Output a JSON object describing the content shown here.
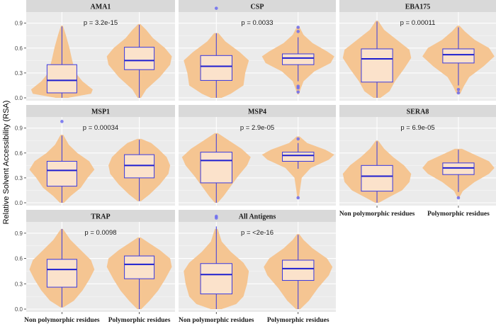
{
  "ylabel": "Relative Solvent Accessibility (RSA)",
  "colors": {
    "violin_fill": "#f5c592",
    "box_fill": "#fbe2cb",
    "box_stroke": "#3a3ae0",
    "median": "#1f1fd0",
    "outlier": "#6b6bf0",
    "panel_bg": "#ebebeb",
    "strip_bg": "#d9d9d9",
    "grid": "#ffffff"
  },
  "chart_data": {
    "type": "violin",
    "ylim": [
      0,
      1.0
    ],
    "y_ticks": [
      0.0,
      0.3,
      0.6,
      0.9
    ],
    "y_tick_labels": [
      "0.0",
      "0.3",
      "0.6",
      "0.9"
    ],
    "categories": [
      "Non polymorphic residues",
      "Polymorphic residues"
    ],
    "panels": [
      {
        "title": "AMA1",
        "pvalue": "p = 3.2e-15",
        "groups": [
          {
            "whisker_low": 0.0,
            "q1": 0.06,
            "median": 0.21,
            "q3": 0.4,
            "whisker_high": 0.86,
            "density": [
              [
                0.0,
                0.18
              ],
              [
                0.05,
                0.85
              ],
              [
                0.1,
                0.9
              ],
              [
                0.2,
                0.6
              ],
              [
                0.3,
                0.4
              ],
              [
                0.45,
                0.3
              ],
              [
                0.6,
                0.22
              ],
              [
                0.75,
                0.12
              ],
              [
                0.87,
                0.03
              ]
            ],
            "outliers": []
          },
          {
            "whisker_low": 0.0,
            "q1": 0.34,
            "median": 0.45,
            "q3": 0.61,
            "whisker_high": 0.88,
            "density": [
              [
                0.0,
                0.05
              ],
              [
                0.1,
                0.2
              ],
              [
                0.25,
                0.6
              ],
              [
                0.4,
                0.9
              ],
              [
                0.5,
                0.95
              ],
              [
                0.6,
                0.75
              ],
              [
                0.72,
                0.4
              ],
              [
                0.82,
                0.2
              ],
              [
                0.89,
                0.03
              ]
            ],
            "outliers": []
          }
        ]
      },
      {
        "title": "CSP",
        "pvalue": "p = 0.0033",
        "groups": [
          {
            "whisker_low": 0.0,
            "q1": 0.21,
            "median": 0.38,
            "q3": 0.51,
            "whisker_high": 0.78,
            "density": [
              [
                0.0,
                0.15
              ],
              [
                0.05,
                0.4
              ],
              [
                0.15,
                0.75
              ],
              [
                0.3,
                0.8
              ],
              [
                0.45,
                0.9
              ],
              [
                0.55,
                0.65
              ],
              [
                0.68,
                0.25
              ],
              [
                0.78,
                0.06
              ]
            ],
            "outliers": [
              1.08
            ]
          },
          {
            "whisker_low": 0.2,
            "q1": 0.4,
            "median": 0.48,
            "q3": 0.53,
            "whisker_high": 0.73,
            "density": [
              [
                0.04,
                0.02
              ],
              [
                0.12,
                0.08
              ],
              [
                0.2,
                0.15
              ],
              [
                0.32,
                0.45
              ],
              [
                0.42,
                0.9
              ],
              [
                0.5,
                1.0
              ],
              [
                0.56,
                0.8
              ],
              [
                0.66,
                0.4
              ],
              [
                0.76,
                0.15
              ],
              [
                0.86,
                0.03
              ]
            ],
            "outliers": [
              0.07,
              0.12,
              0.14,
              0.8,
              0.85
            ]
          }
        ]
      },
      {
        "title": "EBA175",
        "pvalue": "p = 0.00011",
        "groups": [
          {
            "whisker_low": 0.0,
            "q1": 0.19,
            "median": 0.47,
            "q3": 0.59,
            "whisker_high": 0.92,
            "density": [
              [
                0.0,
                0.1
              ],
              [
                0.08,
                0.35
              ],
              [
                0.2,
                0.5
              ],
              [
                0.35,
                0.75
              ],
              [
                0.48,
                0.95
              ],
              [
                0.58,
                0.9
              ],
              [
                0.7,
                0.55
              ],
              [
                0.82,
                0.2
              ],
              [
                0.93,
                0.03
              ]
            ],
            "outliers": []
          },
          {
            "whisker_low": 0.15,
            "q1": 0.42,
            "median": 0.52,
            "q3": 0.59,
            "whisker_high": 0.85,
            "density": [
              [
                0.05,
                0.05
              ],
              [
                0.14,
                0.15
              ],
              [
                0.25,
                0.3
              ],
              [
                0.38,
                0.7
              ],
              [
                0.5,
                1.0
              ],
              [
                0.6,
                0.85
              ],
              [
                0.7,
                0.45
              ],
              [
                0.8,
                0.18
              ],
              [
                0.87,
                0.03
              ]
            ],
            "outliers": [
              0.06,
              0.1
            ]
          }
        ]
      },
      {
        "title": "MSP1",
        "pvalue": "p = 0.00034",
        "groups": [
          {
            "whisker_low": 0.0,
            "q1": 0.2,
            "median": 0.39,
            "q3": 0.5,
            "whisker_high": 0.81,
            "density": [
              [
                0.0,
                0.06
              ],
              [
                0.08,
                0.25
              ],
              [
                0.18,
                0.55
              ],
              [
                0.3,
                0.75
              ],
              [
                0.4,
                0.95
              ],
              [
                0.5,
                0.8
              ],
              [
                0.6,
                0.45
              ],
              [
                0.7,
                0.2
              ],
              [
                0.82,
                0.04
              ]
            ],
            "outliers": [
              0.98
            ]
          },
          {
            "whisker_low": 0.02,
            "q1": 0.3,
            "median": 0.45,
            "q3": 0.58,
            "whisker_high": 0.76,
            "density": [
              [
                0.02,
                0.05
              ],
              [
                0.1,
                0.3
              ],
              [
                0.22,
                0.6
              ],
              [
                0.35,
                0.85
              ],
              [
                0.45,
                0.9
              ],
              [
                0.55,
                0.8
              ],
              [
                0.65,
                0.55
              ],
              [
                0.72,
                0.35
              ],
              [
                0.77,
                0.06
              ]
            ],
            "outliers": []
          }
        ]
      },
      {
        "title": "MSP4",
        "pvalue": "p = 2.9e-05",
        "groups": [
          {
            "whisker_low": 0.0,
            "q1": 0.24,
            "median": 0.51,
            "q3": 0.61,
            "whisker_high": 0.83,
            "density": [
              [
                0.0,
                0.04
              ],
              [
                0.08,
                0.2
              ],
              [
                0.2,
                0.4
              ],
              [
                0.32,
                0.6
              ],
              [
                0.45,
                0.85
              ],
              [
                0.55,
                0.95
              ],
              [
                0.65,
                0.7
              ],
              [
                0.75,
                0.35
              ],
              [
                0.84,
                0.04
              ]
            ],
            "outliers": []
          },
          {
            "whisker_low": 0.41,
            "q1": 0.5,
            "median": 0.57,
            "q3": 0.61,
            "whisker_high": 0.72,
            "density": [
              [
                0.05,
                0.02
              ],
              [
                0.15,
                0.05
              ],
              [
                0.3,
                0.1
              ],
              [
                0.42,
                0.35
              ],
              [
                0.52,
                0.85
              ],
              [
                0.58,
                1.0
              ],
              [
                0.64,
                0.75
              ],
              [
                0.72,
                0.25
              ],
              [
                0.8,
                0.04
              ]
            ],
            "outliers": [
              0.06,
              0.77
            ]
          }
        ]
      },
      {
        "title": "SERA8",
        "pvalue": "p = 6.9e-05",
        "groups": [
          {
            "whisker_low": 0.0,
            "q1": 0.14,
            "median": 0.32,
            "q3": 0.45,
            "whisker_high": 0.74,
            "density": [
              [
                0.0,
                0.05
              ],
              [
                0.07,
                0.35
              ],
              [
                0.15,
                0.7
              ],
              [
                0.25,
                0.9
              ],
              [
                0.35,
                0.95
              ],
              [
                0.45,
                0.75
              ],
              [
                0.55,
                0.45
              ],
              [
                0.65,
                0.2
              ],
              [
                0.75,
                0.03
              ]
            ],
            "outliers": []
          },
          {
            "whisker_low": 0.13,
            "q1": 0.34,
            "median": 0.42,
            "q3": 0.48,
            "whisker_high": 0.64,
            "density": [
              [
                0.06,
                0.02
              ],
              [
                0.14,
                0.12
              ],
              [
                0.25,
                0.45
              ],
              [
                0.35,
                0.85
              ],
              [
                0.42,
                1.0
              ],
              [
                0.5,
                0.85
              ],
              [
                0.58,
                0.45
              ],
              [
                0.65,
                0.1
              ]
            ],
            "outliers": [
              0.06
            ]
          }
        ]
      },
      {
        "title": "TRAP",
        "pvalue": "p = 0.0098",
        "groups": [
          {
            "whisker_low": 0.02,
            "q1": 0.26,
            "median": 0.47,
            "q3": 0.59,
            "whisker_high": 0.95,
            "density": [
              [
                0.02,
                0.04
              ],
              [
                0.1,
                0.35
              ],
              [
                0.22,
                0.6
              ],
              [
                0.35,
                0.8
              ],
              [
                0.47,
                0.95
              ],
              [
                0.58,
                0.85
              ],
              [
                0.7,
                0.55
              ],
              [
                0.82,
                0.25
              ],
              [
                0.95,
                0.03
              ]
            ],
            "outliers": []
          },
          {
            "whisker_low": 0.0,
            "q1": 0.36,
            "median": 0.53,
            "q3": 0.63,
            "whisker_high": 0.84,
            "density": [
              [
                0.0,
                0.06
              ],
              [
                0.1,
                0.3
              ],
              [
                0.22,
                0.55
              ],
              [
                0.35,
                0.75
              ],
              [
                0.5,
                0.95
              ],
              [
                0.6,
                0.9
              ],
              [
                0.7,
                0.6
              ],
              [
                0.78,
                0.3
              ],
              [
                0.85,
                0.04
              ]
            ],
            "outliers": []
          }
        ]
      },
      {
        "title": "All Antigens",
        "pvalue": "p = <2e-16",
        "groups": [
          {
            "whisker_low": 0.0,
            "q1": 0.18,
            "median": 0.41,
            "q3": 0.54,
            "whisker_high": 0.98,
            "density": [
              [
                0.0,
                0.15
              ],
              [
                0.06,
                0.55
              ],
              [
                0.15,
                0.75
              ],
              [
                0.3,
                0.85
              ],
              [
                0.45,
                0.9
              ],
              [
                0.55,
                0.75
              ],
              [
                0.68,
                0.4
              ],
              [
                0.8,
                0.15
              ],
              [
                0.95,
                0.04
              ]
            ],
            "outliers": [
              1.08,
              1.1
            ]
          },
          {
            "whisker_low": 0.0,
            "q1": 0.34,
            "median": 0.48,
            "q3": 0.58,
            "whisker_high": 0.88,
            "density": [
              [
                0.0,
                0.06
              ],
              [
                0.1,
                0.3
              ],
              [
                0.25,
                0.55
              ],
              [
                0.4,
                0.85
              ],
              [
                0.5,
                0.95
              ],
              [
                0.6,
                0.8
              ],
              [
                0.72,
                0.4
              ],
              [
                0.82,
                0.15
              ],
              [
                0.89,
                0.03
              ]
            ],
            "outliers": []
          }
        ]
      }
    ]
  }
}
